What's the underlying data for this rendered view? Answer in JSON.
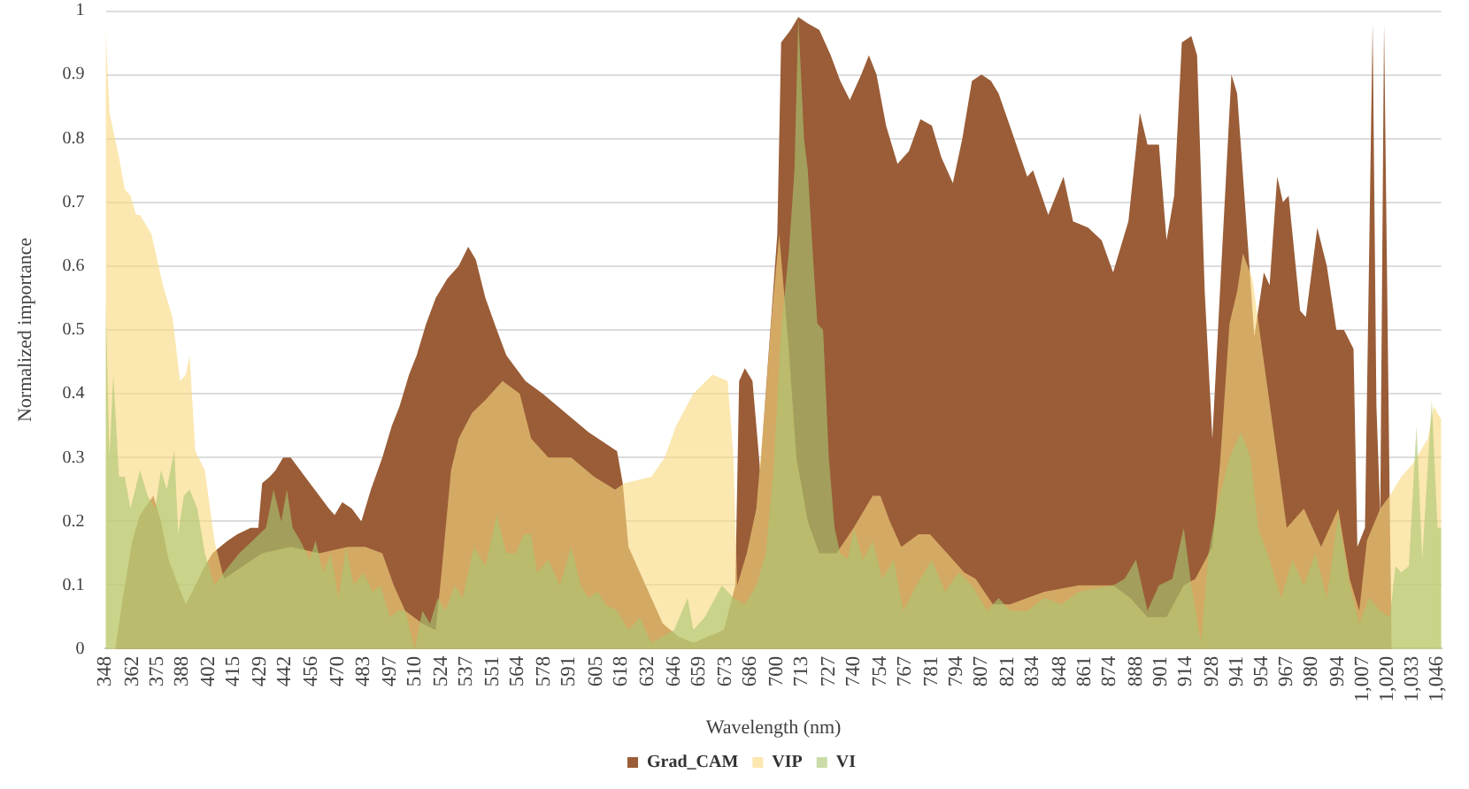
{
  "chart_data": {
    "type": "area",
    "ylabel": "Normalized importance",
    "xlabel": "Wavelength (nm)",
    "xlim": [
      348,
      1048
    ],
    "xticks": [
      348,
      362,
      375,
      388,
      402,
      415,
      429,
      442,
      456,
      470,
      483,
      497,
      510,
      524,
      537,
      551,
      564,
      578,
      591,
      605,
      618,
      632,
      646,
      659,
      673,
      686,
      700,
      713,
      727,
      740,
      754,
      767,
      781,
      794,
      807,
      821,
      834,
      848,
      861,
      874,
      888,
      901,
      914,
      928,
      941,
      954,
      967,
      980,
      994,
      {
        "value": 1007,
        "label": "1,007"
      },
      {
        "value": 1020,
        "label": "1,020"
      },
      {
        "value": 1033,
        "label": "1,033"
      },
      {
        "value": 1046,
        "label": "1,046"
      }
    ],
    "ylim": [
      0,
      1
    ],
    "yticks": [
      0,
      0.1,
      0.2,
      0.3,
      0.4,
      0.5,
      0.6,
      0.7,
      0.8,
      0.9,
      1
    ],
    "grid": "y",
    "legend": "bottom",
    "series": [
      {
        "name": "Grad_CAM",
        "color": "#9a5d37",
        "x": [
          348,
          353,
          357,
          362,
          366,
          373,
          377,
          381,
          386,
          390,
          395,
          400,
          404,
          408,
          412,
          417,
          424,
          428,
          430,
          434,
          437,
          441,
          445,
          450,
          455,
          460,
          465,
          468,
          472,
          477,
          482,
          487,
          493,
          498,
          502,
          507,
          511,
          516,
          521,
          527,
          533,
          538,
          542,
          547,
          553,
          558,
          568,
          577,
          589,
          601,
          616,
          619,
          622,
          631,
          640,
          648,
          656,
          664,
          672,
          678,
          680,
          683,
          687,
          691,
          700,
          702,
          707,
          711,
          716,
          722,
          728,
          733,
          738,
          744,
          748,
          752,
          757,
          763,
          769,
          775,
          781,
          786,
          792,
          797,
          802,
          807,
          812,
          816,
          823,
          831,
          834,
          842,
          850,
          855,
          863,
          870,
          876,
          884,
          890,
          894,
          900,
          904,
          908,
          912,
          917,
          920,
          924,
          928,
          932,
          938,
          941,
          946,
          950,
          955,
          958,
          962,
          965,
          968,
          974,
          977,
          983,
          988,
          993,
          997,
          1002,
          1004,
          1008,
          1012,
          1014,
          1016,
          1018,
          1021,
          1022
        ],
        "values": [
          0,
          0,
          0.08,
          0.17,
          0.21,
          0.24,
          0.2,
          0.14,
          0.1,
          0.07,
          0.1,
          0.13,
          0.15,
          0.16,
          0.17,
          0.18,
          0.19,
          0.19,
          0.26,
          0.27,
          0.28,
          0.3,
          0.3,
          0.28,
          0.26,
          0.24,
          0.22,
          0.21,
          0.23,
          0.22,
          0.2,
          0.25,
          0.3,
          0.35,
          0.38,
          0.43,
          0.46,
          0.51,
          0.55,
          0.58,
          0.6,
          0.63,
          0.61,
          0.55,
          0.5,
          0.46,
          0.42,
          0.4,
          0.37,
          0.34,
          0.31,
          0.26,
          0.16,
          0.1,
          0.04,
          0.02,
          0.01,
          0.02,
          0.03,
          0.1,
          0.42,
          0.44,
          0.42,
          0.28,
          0.65,
          0.95,
          0.97,
          0.99,
          0.98,
          0.97,
          0.93,
          0.89,
          0.86,
          0.9,
          0.93,
          0.9,
          0.82,
          0.76,
          0.78,
          0.83,
          0.82,
          0.77,
          0.73,
          0.8,
          0.89,
          0.9,
          0.89,
          0.87,
          0.81,
          0.74,
          0.75,
          0.68,
          0.74,
          0.67,
          0.66,
          0.64,
          0.59,
          0.67,
          0.84,
          0.79,
          0.79,
          0.64,
          0.71,
          0.95,
          0.96,
          0.93,
          0.56,
          0.33,
          0.56,
          0.9,
          0.87,
          0.66,
          0.49,
          0.59,
          0.57,
          0.74,
          0.7,
          0.71,
          0.53,
          0.52,
          0.66,
          0.6,
          0.5,
          0.5,
          0.47,
          0.16,
          0.19,
          0.98,
          0.38,
          0.21,
          0.98,
          0.22,
          0
        ]
      },
      {
        "name": "VIP",
        "color": "#f8d97f",
        "x": [
          348,
          350,
          355,
          358,
          361,
          364,
          366,
          372,
          378,
          383,
          387,
          390,
          392,
          395,
          400,
          405,
          410,
          420,
          430,
          445,
          460,
          475,
          484,
          493,
          499,
          505,
          514,
          521,
          524,
          529,
          533,
          540,
          547,
          556,
          565,
          571,
          580,
          592,
          604,
          615,
          620,
          634,
          641,
          647,
          656,
          666,
          674,
          677,
          679,
          684,
          689,
          694,
          697,
          701,
          706,
          710,
          716,
          722,
          731,
          740,
          750,
          754,
          759,
          765,
          774,
          780,
          789,
          798,
          804,
          813,
          822,
          831,
          840,
          858,
          876,
          885,
          894,
          904,
          913,
          919,
          928,
          932,
          937,
          941,
          944,
          949,
          955,
          962,
          967,
          976,
          985,
          994,
          1000,
          1005,
          1009,
          1016,
          1021,
          1027,
          1033,
          1041,
          1044,
          1048
        ],
        "values": [
          0.97,
          0.84,
          0.77,
          0.72,
          0.71,
          0.68,
          0.68,
          0.65,
          0.57,
          0.52,
          0.42,
          0.43,
          0.46,
          0.31,
          0.28,
          0.17,
          0.11,
          0.13,
          0.15,
          0.16,
          0.15,
          0.16,
          0.16,
          0.15,
          0.1,
          0.06,
          0.04,
          0.03,
          0.12,
          0.28,
          0.33,
          0.37,
          0.39,
          0.42,
          0.4,
          0.33,
          0.3,
          0.3,
          0.27,
          0.25,
          0.26,
          0.27,
          0.3,
          0.35,
          0.4,
          0.43,
          0.42,
          0.3,
          0.1,
          0.15,
          0.22,
          0.4,
          0.52,
          0.65,
          0.47,
          0.3,
          0.2,
          0.15,
          0.15,
          0.19,
          0.24,
          0.24,
          0.2,
          0.16,
          0.18,
          0.18,
          0.15,
          0.12,
          0.11,
          0.07,
          0.07,
          0.08,
          0.09,
          0.1,
          0.1,
          0.08,
          0.05,
          0.05,
          0.1,
          0.11,
          0.16,
          0.29,
          0.51,
          0.56,
          0.62,
          0.58,
          0.45,
          0.3,
          0.19,
          0.22,
          0.16,
          0.22,
          0.11,
          0.06,
          0.17,
          0.22,
          0.24,
          0.27,
          0.29,
          0.33,
          0.38,
          0.36
        ]
      },
      {
        "name": "VI",
        "color": "#a9c671",
        "x": [
          348,
          350,
          352,
          355,
          358,
          361,
          366,
          370,
          374,
          377,
          380,
          384,
          386,
          389,
          392,
          396,
          400,
          405,
          410,
          418,
          425,
          432,
          436,
          440,
          443,
          446,
          450,
          455,
          458,
          462,
          466,
          470,
          474,
          478,
          483,
          488,
          492,
          497,
          501,
          505,
          510,
          514,
          518,
          522,
          526,
          531,
          535,
          541,
          547,
          553,
          558,
          563,
          567,
          571,
          574,
          580,
          586,
          592,
          597,
          601,
          606,
          610,
          616,
          622,
          628,
          634,
          640,
          646,
          653,
          656,
          662,
          671,
          677,
          683,
          689,
          694,
          698,
          702,
          706,
          709,
          711,
          714,
          716,
          719,
          721,
          724,
          727,
          730,
          733,
          737,
          740,
          745,
          750,
          755,
          761,
          766,
          773,
          781,
          788,
          795,
          802,
          810,
          816,
          822,
          831,
          840,
          849,
          858,
          876,
          882,
          888,
          894,
          900,
          907,
          913,
          917,
          922,
          926,
          931,
          937,
          943,
          948,
          952,
          958,
          964,
          970,
          976,
          982,
          988,
          994,
          1000,
          1005,
          1010,
          1016,
          1021,
          1024,
          1027,
          1031,
          1035,
          1038,
          1043,
          1046,
          1048
        ],
        "values": [
          0.55,
          0.3,
          0.43,
          0.27,
          0.27,
          0.22,
          0.28,
          0.24,
          0.22,
          0.28,
          0.25,
          0.31,
          0.18,
          0.24,
          0.25,
          0.22,
          0.15,
          0.1,
          0.12,
          0.15,
          0.17,
          0.19,
          0.25,
          0.2,
          0.25,
          0.19,
          0.17,
          0.14,
          0.17,
          0.12,
          0.15,
          0.08,
          0.16,
          0.1,
          0.12,
          0.09,
          0.1,
          0.05,
          0.06,
          0.06,
          0,
          0.06,
          0.04,
          0.08,
          0.06,
          0.1,
          0.08,
          0.16,
          0.13,
          0.21,
          0.15,
          0.15,
          0.18,
          0.18,
          0.12,
          0.14,
          0.1,
          0.16,
          0.1,
          0.08,
          0.09,
          0.07,
          0.06,
          0.03,
          0.05,
          0.01,
          0.02,
          0.03,
          0.08,
          0.03,
          0.05,
          0.1,
          0.08,
          0.07,
          0.1,
          0.15,
          0.28,
          0.5,
          0.62,
          0.75,
          0.99,
          0.8,
          0.75,
          0.6,
          0.51,
          0.5,
          0.3,
          0.19,
          0.15,
          0.14,
          0.19,
          0.14,
          0.17,
          0.11,
          0.14,
          0.06,
          0.1,
          0.14,
          0.09,
          0.12,
          0.1,
          0.06,
          0.08,
          0.06,
          0.06,
          0.08,
          0.07,
          0.09,
          0.1,
          0.11,
          0.14,
          0.06,
          0.1,
          0.11,
          0.19,
          0.1,
          0.01,
          0.15,
          0.23,
          0.3,
          0.34,
          0.3,
          0.19,
          0.14,
          0.08,
          0.14,
          0.1,
          0.15,
          0.08,
          0.21,
          0.1,
          0.04,
          0.08,
          0.06,
          0.05,
          0.13,
          0.12,
          0.13,
          0.35,
          0.14,
          0.39,
          0.19,
          0.19
        ]
      }
    ]
  }
}
